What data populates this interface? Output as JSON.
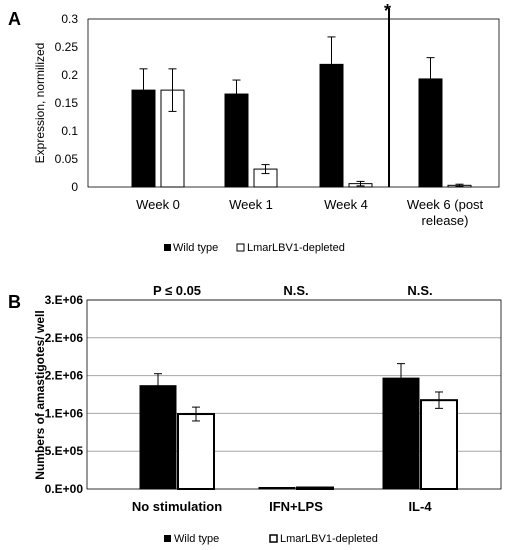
{
  "chart_data": [
    {
      "panel": "A",
      "type": "bar",
      "categories": [
        "Week 0",
        "Week 1",
        "Week 4",
        "Week 6 (post release)"
      ],
      "series": [
        {
          "name": "Wild type",
          "color": "#000000",
          "values": [
            0.173,
            0.166,
            0.219,
            0.193
          ],
          "errors": [
            0.038,
            0.025,
            0.049,
            0.038
          ]
        },
        {
          "name": "LmarLBV1-depleted",
          "color": "#ffffff",
          "values": [
            0.173,
            0.032,
            0.006,
            0.003
          ],
          "errors": [
            0.038,
            0.008,
            0.004,
            0.002
          ]
        }
      ],
      "ylabel": "Expression, normilized",
      "ylim": [
        0,
        0.3
      ],
      "yticks": [
        "0",
        "0.05",
        "0.1",
        "0.15",
        "0.2",
        "0.25",
        "0.3"
      ],
      "divider_marker": "*",
      "grid": false,
      "legend_position": "bottom"
    },
    {
      "panel": "B",
      "type": "bar",
      "categories": [
        "No stimulation",
        "IFN+LPS",
        "IL-4"
      ],
      "series": [
        {
          "name": "Wild type",
          "color": "#000000",
          "values": 1640000,
          "values_list": [
            1640000,
            5000,
            1760000
          ],
          "errors": [
            190000,
            0,
            230000
          ]
        },
        {
          "name": "LmarLBV1-depleted",
          "color": "#ffffff",
          "values_list": [
            1190000,
            15000,
            1410000
          ],
          "errors": [
            110000,
            0,
            130000
          ]
        }
      ],
      "ylabel": "Numbers of amastigotes/ well",
      "ylim": [
        0,
        3000000
      ],
      "yticks": [
        "0.E+00",
        "5.E+05",
        "1.E+06",
        "2.E+06",
        "2.E+06",
        "3.E+06"
      ],
      "annotations": [
        "P ≤ 0.05",
        "N.S.",
        "N.S."
      ],
      "grid": true,
      "legend_position": "bottom"
    }
  ]
}
